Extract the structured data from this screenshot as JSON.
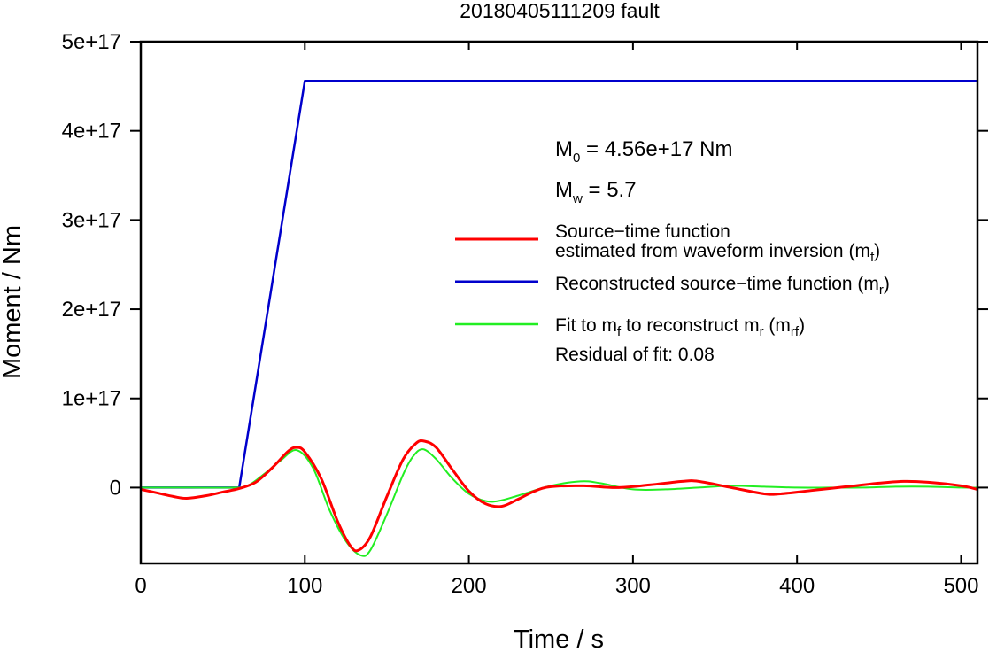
{
  "chart_data": {
    "type": "line",
    "title": "20180405111209 fault",
    "xlabel": "Time / s",
    "ylabel": "Moment / Nm",
    "xlim": [
      0,
      510
    ],
    "ylim": [
      -8.5e+16,
      5e+17
    ],
    "x_ticks": [
      0,
      100,
      200,
      300,
      400,
      500
    ],
    "x_tick_labels": [
      "0",
      "100",
      "200",
      "300",
      "400",
      "500"
    ],
    "y_ticks": [
      0,
      1e+17,
      2e+17,
      3e+17,
      4e+17,
      5e+17
    ],
    "y_tick_labels": [
      "0",
      "1e+17",
      "2e+17",
      "3e+17",
      "4e+17",
      "5e+17"
    ],
    "grid": false,
    "legend_position": "right",
    "annotations": {
      "m0": {
        "sym": "M",
        "sub": "0",
        "rest": " = 4.56e+17 Nm"
      },
      "mw": {
        "sym": "M",
        "sub": "w",
        "rest": " = 5.7"
      },
      "residual": "Residual of fit: 0.08"
    },
    "series": [
      {
        "key": "red",
        "legend_line1": "Source−time function",
        "legend_line2": "estimated from waveform inversion (m",
        "legend_sub": "f",
        "legend_end": ")",
        "color": "#ff0000",
        "x": [
          0,
          10,
          20,
          28,
          40,
          50,
          60,
          70,
          80,
          90,
          95,
          100,
          110,
          120,
          128,
          133,
          140,
          150,
          160,
          168,
          173,
          180,
          190,
          200,
          210,
          220,
          230,
          240,
          250,
          270,
          290,
          310,
          330,
          340,
          360,
          380,
          390,
          410,
          430,
          450,
          465,
          480,
          500,
          510
        ],
        "y": [
          -2000000000000000.0,
          -6000000000000000.0,
          -1e+16,
          -1.2e+16,
          -9000000000000000.0,
          -5000000000000000.0,
          -1000000000000000.0,
          6000000000000000.0,
          2.2e+16,
          4.1e+16,
          4.5e+16,
          4e+16,
          1e+16,
          -3.8e+16,
          -6.6e+16,
          -7e+16,
          -5.5e+16,
          -1e+16,
          3.2e+16,
          5e+16,
          5.2e+16,
          4.5e+16,
          2e+16,
          -4000000000000000.0,
          -1.8e+16,
          -2.1e+16,
          -1.3e+16,
          -4000000000000000.0,
          1000000000000000.0,
          2000000000000000.0,
          0,
          3000000000000000.0,
          7000000000000000.0,
          7000000000000000.0,
          0,
          -7000000000000000.0,
          -7000000000000000.0,
          -3000000000000000.0,
          1000000000000000.0,
          5000000000000000.0,
          7000000000000000.0,
          6000000000000000.0,
          2000000000000000.0,
          -2000000000000000.0
        ],
        "line_width": 3
      },
      {
        "key": "blue",
        "legend_text": "Reconstructed source−time function (m",
        "legend_sub": "r",
        "legend_end": ")",
        "color": "#0000cc",
        "x": [
          0,
          60,
          100,
          510
        ],
        "y": [
          0,
          0,
          4.56e+17,
          4.56e+17
        ],
        "line_width": 2.5
      },
      {
        "key": "green",
        "legend_text_a": "Fit to m",
        "legend_sub_a": "f",
        "legend_text_b": " to reconstruct m",
        "legend_sub_b": "r",
        "legend_text_c": " (m",
        "legend_sub_c": "rf",
        "legend_end": ")",
        "color": "#22ee22",
        "x": [
          0,
          30,
          55,
          65,
          75,
          85,
          95,
          105,
          115,
          125,
          134,
          140,
          150,
          160,
          166,
          172,
          180,
          190,
          200,
          210,
          218,
          230,
          250,
          268,
          280,
          300,
          320,
          340,
          360,
          380,
          400,
          420,
          440,
          460,
          480,
          500,
          510
        ],
        "y": [
          0,
          0,
          0,
          2000000000000000.0,
          1.5e+16,
          3e+16,
          4.2e+16,
          2.2e+16,
          -2.5e+16,
          -6e+16,
          -7.6e+16,
          -7e+16,
          -3e+16,
          1.5e+16,
          3.5e+16,
          4.3e+16,
          3.2e+16,
          1e+16,
          -7000000000000000.0,
          -1.5e+16,
          -1.5e+16,
          -9000000000000000.0,
          2000000000000000.0,
          7000000000000000.0,
          5000000000000000.0,
          -2000000000000000.0,
          -2000000000000000.0,
          0,
          2000000000000000.0,
          1000000000000000.0,
          0,
          0,
          0,
          1000000000000000.0,
          1000000000000000.0,
          0,
          0
        ],
        "line_width": 2
      }
    ]
  }
}
